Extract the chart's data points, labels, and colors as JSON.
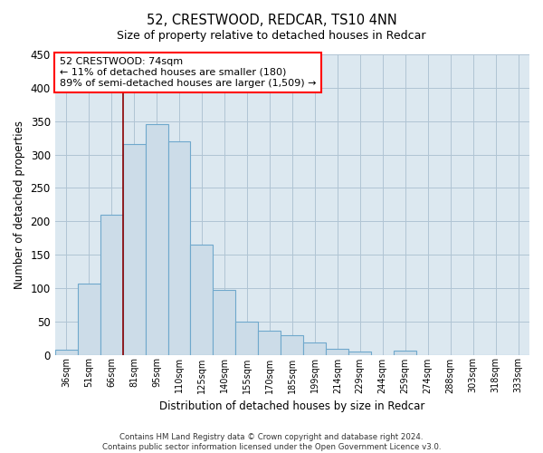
{
  "title": "52, CRESTWOOD, REDCAR, TS10 4NN",
  "subtitle": "Size of property relative to detached houses in Redcar",
  "xlabel": "Distribution of detached houses by size in Redcar",
  "ylabel": "Number of detached properties",
  "bar_color": "#ccdce8",
  "bar_edge_color": "#6fa8cc",
  "background_color": "#ffffff",
  "plot_bg_color": "#dce8f0",
  "grid_color": "#b0c4d4",
  "categories": [
    "36sqm",
    "51sqm",
    "66sqm",
    "81sqm",
    "95sqm",
    "110sqm",
    "125sqm",
    "140sqm",
    "155sqm",
    "170sqm",
    "185sqm",
    "199sqm",
    "214sqm",
    "229sqm",
    "244sqm",
    "259sqm",
    "274sqm",
    "288sqm",
    "303sqm",
    "318sqm",
    "333sqm"
  ],
  "values": [
    7,
    106,
    210,
    315,
    345,
    320,
    165,
    97,
    50,
    36,
    29,
    19,
    9,
    5,
    0,
    6,
    0,
    0,
    0,
    0,
    0
  ],
  "ylim": [
    0,
    450
  ],
  "yticks": [
    0,
    50,
    100,
    150,
    200,
    250,
    300,
    350,
    400,
    450
  ],
  "property_line_x": 2.5,
  "annotation_text_line1": "52 CRESTWOOD: 74sqm",
  "annotation_text_line2": "← 11% of detached houses are smaller (180)",
  "annotation_text_line3": "89% of semi-detached houses are larger (1,509) →",
  "footer_line1": "Contains HM Land Registry data © Crown copyright and database right 2024.",
  "footer_line2": "Contains public sector information licensed under the Open Government Licence v3.0."
}
